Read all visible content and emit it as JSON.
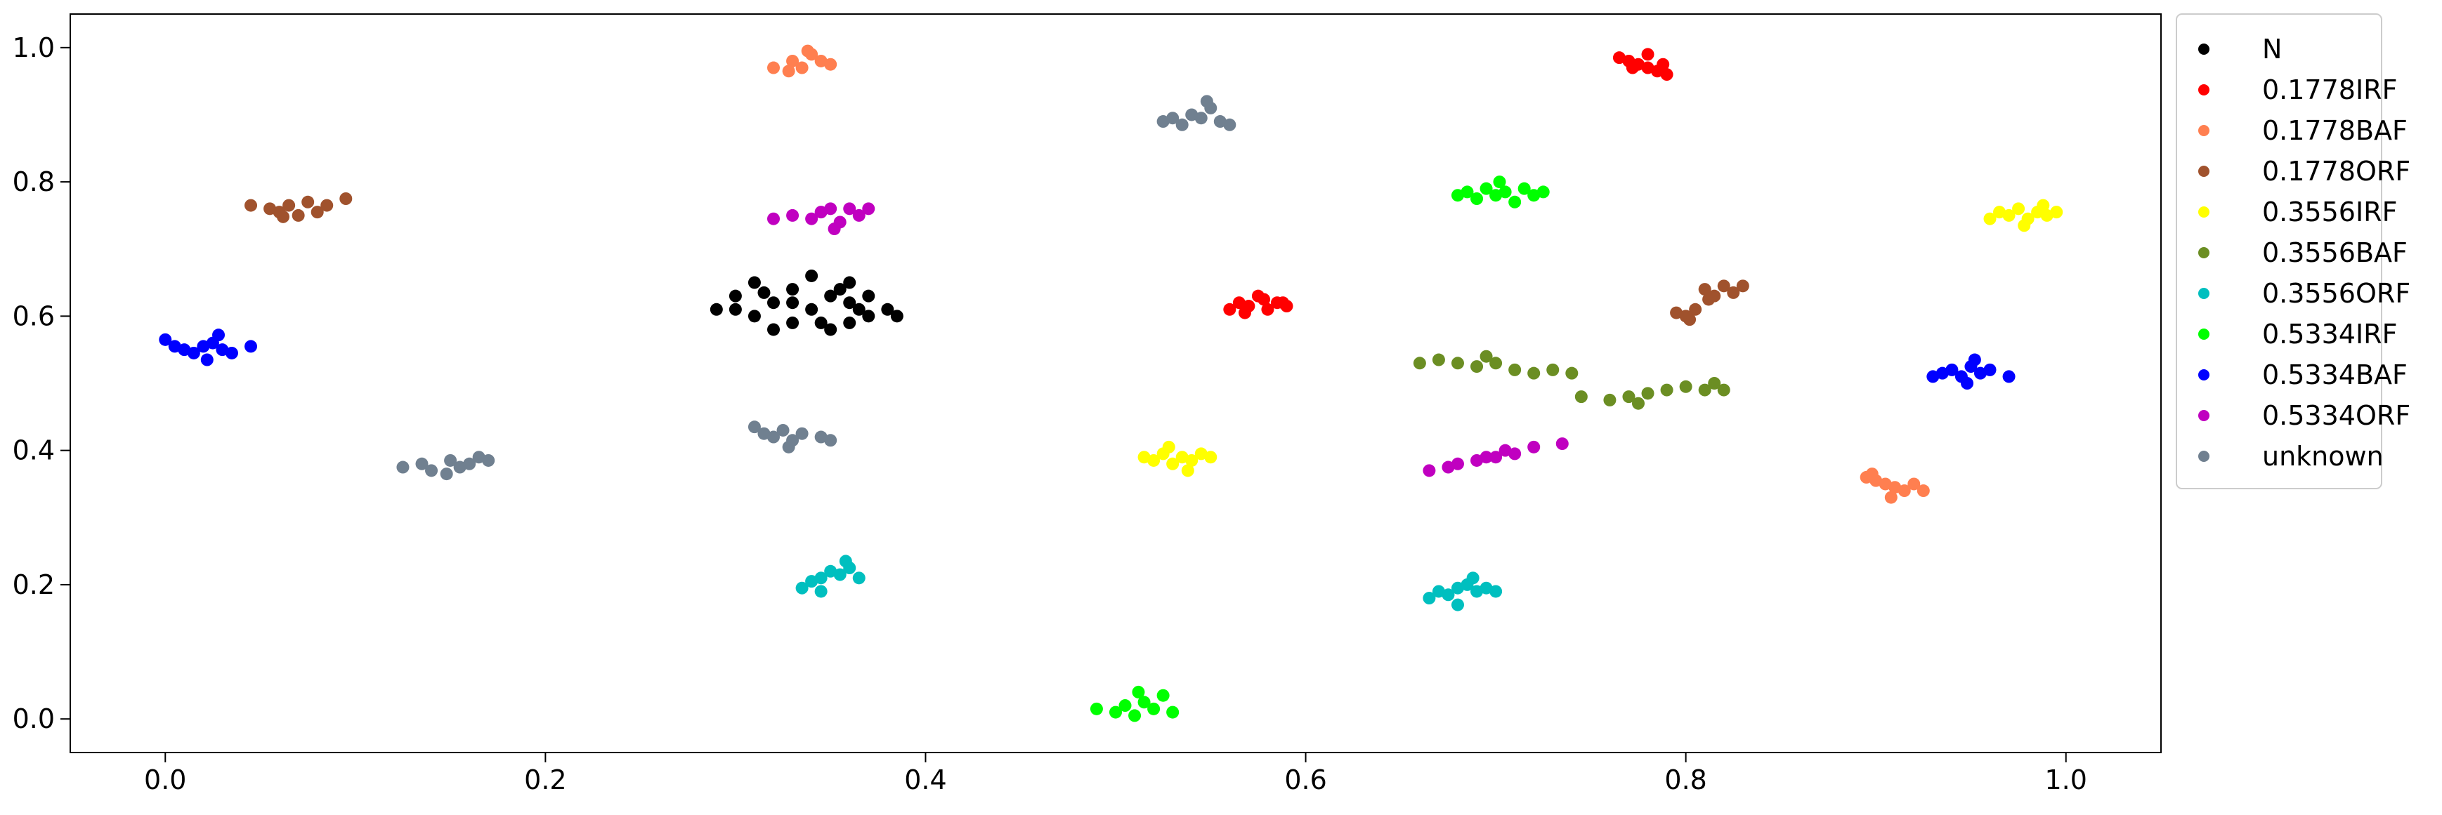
{
  "chart_data": {
    "type": "scatter",
    "title": "",
    "xlabel": "",
    "ylabel": "",
    "xlim": [
      -0.05,
      1.05
    ],
    "ylim": [
      -0.05,
      1.05
    ],
    "x_ticks": [
      0.0,
      0.2,
      0.4,
      0.6,
      0.8,
      1.0
    ],
    "x_tick_labels": [
      "0.0",
      "0.2",
      "0.4",
      "0.6",
      "0.8",
      "1.0"
    ],
    "y_ticks": [
      0.0,
      0.2,
      0.4,
      0.6,
      0.8,
      1.0
    ],
    "y_tick_labels": [
      "0.0",
      "0.2",
      "0.4",
      "0.6",
      "0.8",
      "1.0"
    ],
    "grid": false,
    "legend_placement": "outside-right-top",
    "series": [
      {
        "name": "N",
        "color": "#000000",
        "points": [
          [
            0.29,
            0.61
          ],
          [
            0.3,
            0.63
          ],
          [
            0.31,
            0.6
          ],
          [
            0.31,
            0.65
          ],
          [
            0.32,
            0.62
          ],
          [
            0.33,
            0.59
          ],
          [
            0.33,
            0.64
          ],
          [
            0.34,
            0.61
          ],
          [
            0.34,
            0.66
          ],
          [
            0.35,
            0.63
          ],
          [
            0.35,
            0.58
          ],
          [
            0.36,
            0.62
          ],
          [
            0.36,
            0.65
          ],
          [
            0.37,
            0.6
          ],
          [
            0.37,
            0.63
          ],
          [
            0.38,
            0.61
          ],
          [
            0.385,
            0.6
          ],
          [
            0.32,
            0.58
          ],
          [
            0.36,
            0.59
          ],
          [
            0.3,
            0.61
          ],
          [
            0.33,
            0.62
          ],
          [
            0.355,
            0.64
          ],
          [
            0.345,
            0.59
          ],
          [
            0.315,
            0.635
          ],
          [
            0.365,
            0.61
          ]
        ]
      },
      {
        "name": "0.1778IRF",
        "color": "#ff0000",
        "points": [
          [
            0.765,
            0.985
          ],
          [
            0.77,
            0.98
          ],
          [
            0.775,
            0.975
          ],
          [
            0.78,
            0.97
          ],
          [
            0.785,
            0.965
          ],
          [
            0.79,
            0.96
          ],
          [
            0.78,
            0.99
          ],
          [
            0.772,
            0.97
          ],
          [
            0.788,
            0.975
          ],
          [
            0.56,
            0.61
          ],
          [
            0.565,
            0.62
          ],
          [
            0.57,
            0.615
          ],
          [
            0.575,
            0.63
          ],
          [
            0.58,
            0.61
          ],
          [
            0.585,
            0.62
          ],
          [
            0.59,
            0.615
          ],
          [
            0.578,
            0.625
          ],
          [
            0.568,
            0.605
          ],
          [
            0.588,
            0.62
          ]
        ]
      },
      {
        "name": "0.1778BAF",
        "color": "#ff7f50",
        "points": [
          [
            0.32,
            0.97
          ],
          [
            0.33,
            0.98
          ],
          [
            0.335,
            0.97
          ],
          [
            0.34,
            0.99
          ],
          [
            0.345,
            0.98
          ],
          [
            0.35,
            0.975
          ],
          [
            0.338,
            0.995
          ],
          [
            0.328,
            0.965
          ],
          [
            0.895,
            0.36
          ],
          [
            0.9,
            0.355
          ],
          [
            0.905,
            0.35
          ],
          [
            0.91,
            0.345
          ],
          [
            0.915,
            0.34
          ],
          [
            0.92,
            0.35
          ],
          [
            0.925,
            0.34
          ],
          [
            0.908,
            0.33
          ],
          [
            0.898,
            0.365
          ]
        ]
      },
      {
        "name": "0.1778ORF",
        "color": "#a0522d",
        "points": [
          [
            0.045,
            0.765
          ],
          [
            0.055,
            0.76
          ],
          [
            0.06,
            0.755
          ],
          [
            0.065,
            0.765
          ],
          [
            0.07,
            0.75
          ],
          [
            0.075,
            0.77
          ],
          [
            0.08,
            0.755
          ],
          [
            0.085,
            0.765
          ],
          [
            0.095,
            0.775
          ],
          [
            0.062,
            0.748
          ],
          [
            0.795,
            0.605
          ],
          [
            0.8,
            0.6
          ],
          [
            0.805,
            0.61
          ],
          [
            0.81,
            0.64
          ],
          [
            0.815,
            0.63
          ],
          [
            0.82,
            0.645
          ],
          [
            0.825,
            0.635
          ],
          [
            0.83,
            0.645
          ],
          [
            0.812,
            0.625
          ],
          [
            0.802,
            0.595
          ]
        ]
      },
      {
        "name": "0.3556IRF",
        "color": "#ffff00",
        "points": [
          [
            0.515,
            0.39
          ],
          [
            0.52,
            0.385
          ],
          [
            0.525,
            0.395
          ],
          [
            0.53,
            0.38
          ],
          [
            0.535,
            0.39
          ],
          [
            0.54,
            0.385
          ],
          [
            0.545,
            0.395
          ],
          [
            0.55,
            0.39
          ],
          [
            0.538,
            0.37
          ],
          [
            0.528,
            0.405
          ],
          [
            0.96,
            0.745
          ],
          [
            0.965,
            0.755
          ],
          [
            0.97,
            0.75
          ],
          [
            0.975,
            0.76
          ],
          [
            0.98,
            0.745
          ],
          [
            0.985,
            0.755
          ],
          [
            0.99,
            0.75
          ],
          [
            0.995,
            0.755
          ],
          [
            0.978,
            0.735
          ],
          [
            0.988,
            0.765
          ]
        ]
      },
      {
        "name": "0.3556BAF",
        "color": "#6b8e23",
        "points": [
          [
            0.66,
            0.53
          ],
          [
            0.67,
            0.535
          ],
          [
            0.68,
            0.53
          ],
          [
            0.69,
            0.525
          ],
          [
            0.7,
            0.53
          ],
          [
            0.71,
            0.52
          ],
          [
            0.72,
            0.515
          ],
          [
            0.73,
            0.52
          ],
          [
            0.74,
            0.515
          ],
          [
            0.695,
            0.54
          ],
          [
            0.745,
            0.48
          ],
          [
            0.76,
            0.475
          ],
          [
            0.77,
            0.48
          ],
          [
            0.78,
            0.485
          ],
          [
            0.79,
            0.49
          ],
          [
            0.8,
            0.495
          ],
          [
            0.81,
            0.49
          ],
          [
            0.82,
            0.49
          ],
          [
            0.815,
            0.5
          ],
          [
            0.775,
            0.47
          ]
        ]
      },
      {
        "name": "0.3556ORF",
        "color": "#00bfbf",
        "points": [
          [
            0.335,
            0.195
          ],
          [
            0.34,
            0.205
          ],
          [
            0.345,
            0.21
          ],
          [
            0.35,
            0.22
          ],
          [
            0.355,
            0.215
          ],
          [
            0.36,
            0.225
          ],
          [
            0.365,
            0.21
          ],
          [
            0.345,
            0.19
          ],
          [
            0.358,
            0.235
          ],
          [
            0.665,
            0.18
          ],
          [
            0.67,
            0.19
          ],
          [
            0.675,
            0.185
          ],
          [
            0.68,
            0.195
          ],
          [
            0.685,
            0.2
          ],
          [
            0.69,
            0.19
          ],
          [
            0.695,
            0.195
          ],
          [
            0.7,
            0.19
          ],
          [
            0.68,
            0.17
          ],
          [
            0.688,
            0.21
          ]
        ]
      },
      {
        "name": "0.5334IRF",
        "color": "#00ff00",
        "points": [
          [
            0.49,
            0.015
          ],
          [
            0.5,
            0.01
          ],
          [
            0.505,
            0.02
          ],
          [
            0.51,
            0.005
          ],
          [
            0.515,
            0.025
          ],
          [
            0.52,
            0.015
          ],
          [
            0.525,
            0.035
          ],
          [
            0.53,
            0.01
          ],
          [
            0.512,
            0.04
          ],
          [
            0.68,
            0.78
          ],
          [
            0.685,
            0.785
          ],
          [
            0.69,
            0.775
          ],
          [
            0.695,
            0.79
          ],
          [
            0.7,
            0.78
          ],
          [
            0.705,
            0.785
          ],
          [
            0.71,
            0.77
          ],
          [
            0.715,
            0.79
          ],
          [
            0.72,
            0.78
          ],
          [
            0.725,
            0.785
          ],
          [
            0.702,
            0.8
          ]
        ]
      },
      {
        "name": "0.5334BAF",
        "color": "#0000ff",
        "points": [
          [
            0.0,
            0.565
          ],
          [
            0.005,
            0.555
          ],
          [
            0.01,
            0.55
          ],
          [
            0.015,
            0.545
          ],
          [
            0.02,
            0.555
          ],
          [
            0.025,
            0.56
          ],
          [
            0.03,
            0.55
          ],
          [
            0.035,
            0.545
          ],
          [
            0.045,
            0.555
          ],
          [
            0.022,
            0.535
          ],
          [
            0.028,
            0.572
          ],
          [
            0.93,
            0.51
          ],
          [
            0.935,
            0.515
          ],
          [
            0.94,
            0.52
          ],
          [
            0.945,
            0.51
          ],
          [
            0.95,
            0.525
          ],
          [
            0.955,
            0.515
          ],
          [
            0.96,
            0.52
          ],
          [
            0.97,
            0.51
          ],
          [
            0.948,
            0.5
          ],
          [
            0.952,
            0.535
          ]
        ]
      },
      {
        "name": "0.5334ORF",
        "color": "#c000c0",
        "points": [
          [
            0.32,
            0.745
          ],
          [
            0.33,
            0.75
          ],
          [
            0.34,
            0.745
          ],
          [
            0.345,
            0.755
          ],
          [
            0.35,
            0.76
          ],
          [
            0.355,
            0.74
          ],
          [
            0.36,
            0.76
          ],
          [
            0.365,
            0.75
          ],
          [
            0.37,
            0.76
          ],
          [
            0.352,
            0.73
          ],
          [
            0.665,
            0.37
          ],
          [
            0.675,
            0.375
          ],
          [
            0.68,
            0.38
          ],
          [
            0.69,
            0.385
          ],
          [
            0.695,
            0.39
          ],
          [
            0.7,
            0.39
          ],
          [
            0.705,
            0.4
          ],
          [
            0.71,
            0.395
          ],
          [
            0.72,
            0.405
          ],
          [
            0.735,
            0.41
          ]
        ]
      },
      {
        "name": "unknown",
        "color": "#708090",
        "points": [
          [
            0.125,
            0.375
          ],
          [
            0.135,
            0.38
          ],
          [
            0.14,
            0.37
          ],
          [
            0.15,
            0.385
          ],
          [
            0.155,
            0.375
          ],
          [
            0.16,
            0.38
          ],
          [
            0.165,
            0.39
          ],
          [
            0.17,
            0.385
          ],
          [
            0.148,
            0.365
          ],
          [
            0.31,
            0.435
          ],
          [
            0.315,
            0.425
          ],
          [
            0.32,
            0.42
          ],
          [
            0.325,
            0.43
          ],
          [
            0.33,
            0.415
          ],
          [
            0.335,
            0.425
          ],
          [
            0.345,
            0.42
          ],
          [
            0.35,
            0.415
          ],
          [
            0.328,
            0.405
          ],
          [
            0.525,
            0.89
          ],
          [
            0.53,
            0.895
          ],
          [
            0.535,
            0.885
          ],
          [
            0.54,
            0.9
          ],
          [
            0.545,
            0.895
          ],
          [
            0.55,
            0.91
          ],
          [
            0.555,
            0.89
          ],
          [
            0.56,
            0.885
          ],
          [
            0.548,
            0.92
          ]
        ]
      }
    ]
  }
}
